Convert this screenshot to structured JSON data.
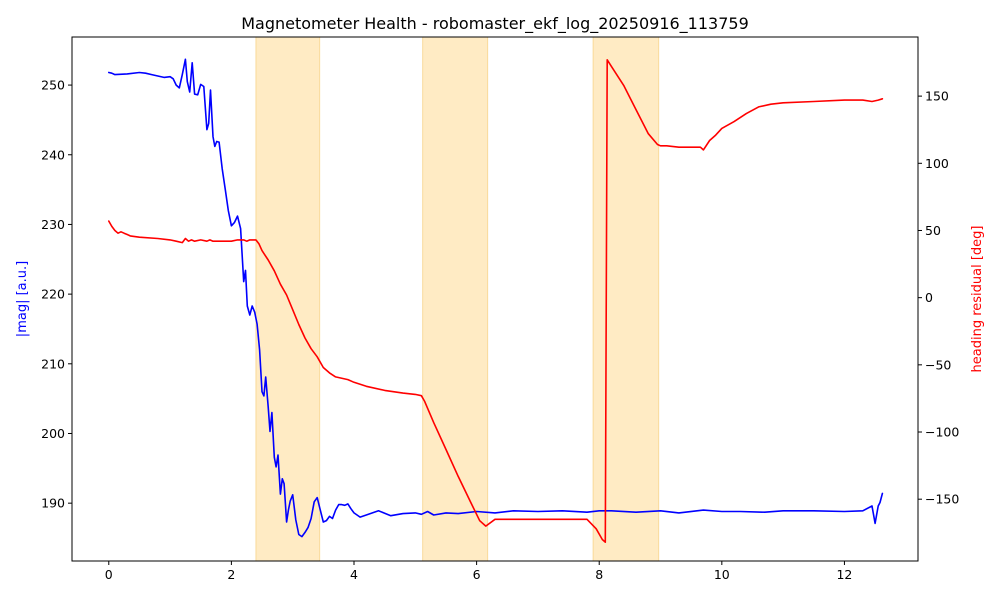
{
  "chart_data": {
    "type": "line",
    "title": "Magnetometer Health - robomaster_ekf_log_20250916_113759",
    "xlabel": "",
    "xlim": [
      -0.6,
      13.2
    ],
    "x_ticks": [
      0,
      2,
      4,
      6,
      8,
      10,
      12
    ],
    "left_axis": {
      "label": "|mag| [a.u.]",
      "color": "#0000ff",
      "ylim": [
        181.7,
        256.9
      ],
      "ticks": [
        190,
        200,
        210,
        220,
        230,
        240,
        250
      ]
    },
    "right_axis": {
      "label": "heading residual [deg]",
      "color": "#ff0000",
      "ylim": [
        -196,
        194
      ],
      "ticks": [
        -150,
        -100,
        -50,
        0,
        50,
        100,
        150
      ]
    },
    "shaded_regions": {
      "color": "#ffe4b0",
      "spans": [
        [
          2.4,
          3.44
        ],
        [
          5.12,
          6.18
        ],
        [
          7.9,
          8.97
        ]
      ]
    },
    "grid": false,
    "series": [
      {
        "axis": "left",
        "color": "#0000ff",
        "x": [
          0,
          0.05,
          0.1,
          0.3,
          0.5,
          0.6,
          0.7,
          0.8,
          0.9,
          1.0,
          1.05,
          1.1,
          1.15,
          1.2,
          1.25,
          1.28,
          1.32,
          1.36,
          1.4,
          1.45,
          1.5,
          1.55,
          1.6,
          1.63,
          1.66,
          1.7,
          1.73,
          1.76,
          1.8,
          1.85,
          1.9,
          1.95,
          2.0,
          2.05,
          2.1,
          2.15,
          2.2,
          2.23,
          2.26,
          2.3,
          2.34,
          2.38,
          2.42,
          2.46,
          2.5,
          2.53,
          2.56,
          2.6,
          2.63,
          2.66,
          2.7,
          2.73,
          2.76,
          2.8,
          2.83,
          2.86,
          2.9,
          2.93,
          2.96,
          3.0,
          3.05,
          3.1,
          3.15,
          3.2,
          3.25,
          3.3,
          3.35,
          3.4,
          3.45,
          3.5,
          3.55,
          3.6,
          3.65,
          3.7,
          3.75,
          3.8,
          3.85,
          3.9,
          3.95,
          4.0,
          4.1,
          4.2,
          4.3,
          4.4,
          4.6,
          4.8,
          5.0,
          5.1,
          5.2,
          5.3,
          5.5,
          5.7,
          6.0,
          6.3,
          6.6,
          7.0,
          7.4,
          7.8,
          8.0,
          8.2,
          8.6,
          9.0,
          9.3,
          9.7,
          10.0,
          10.3,
          10.7,
          11.0,
          11.5,
          12.0,
          12.3,
          12.45,
          12.5,
          12.55,
          12.58,
          12.62
        ],
        "values": [
          251.8,
          251.7,
          251.5,
          251.6,
          251.8,
          251.7,
          251.5,
          251.3,
          251.1,
          251.2,
          250.9,
          250.0,
          249.6,
          251.5,
          253.7,
          250.5,
          249.0,
          253.2,
          248.7,
          248.6,
          250.1,
          249.8,
          243.6,
          244.5,
          249.3,
          242.6,
          241.2,
          241.9,
          241.8,
          238.0,
          235.0,
          232.0,
          229.8,
          230.3,
          231.2,
          229.4,
          221.8,
          223.4,
          218.3,
          217.0,
          218.3,
          217.4,
          215.7,
          212.0,
          206.0,
          205.4,
          208.1,
          203.8,
          200.3,
          203.0,
          196.6,
          195.2,
          196.9,
          191.3,
          193.5,
          192.8,
          187.3,
          189.0,
          190.3,
          191.2,
          187.6,
          185.5,
          185.2,
          185.8,
          186.5,
          187.8,
          190.2,
          190.8,
          189.0,
          187.3,
          187.5,
          188.1,
          187.8,
          189.0,
          189.8,
          189.8,
          189.7,
          189.9,
          189.2,
          188.6,
          188.0,
          188.3,
          188.6,
          188.9,
          188.2,
          188.5,
          188.6,
          188.4,
          188.8,
          188.3,
          188.6,
          188.5,
          188.8,
          188.6,
          188.9,
          188.8,
          188.9,
          188.7,
          188.9,
          188.9,
          188.7,
          188.9,
          188.6,
          189.0,
          188.8,
          188.8,
          188.7,
          188.9,
          188.9,
          188.8,
          188.9,
          189.6,
          187.1,
          189.6,
          190.1,
          191.4
        ]
      },
      {
        "axis": "right",
        "color": "#ff0000",
        "x": [
          0,
          0.05,
          0.1,
          0.15,
          0.2,
          0.25,
          0.3,
          0.35,
          0.5,
          0.8,
          1.0,
          1.1,
          1.2,
          1.25,
          1.3,
          1.35,
          1.4,
          1.5,
          1.6,
          1.65,
          1.7,
          1.8,
          2.0,
          2.1,
          2.2,
          2.25,
          2.3,
          2.4,
          2.45,
          2.5,
          2.6,
          2.7,
          2.8,
          2.9,
          3.0,
          3.1,
          3.2,
          3.3,
          3.4,
          3.5,
          3.6,
          3.7,
          3.9,
          4.0,
          4.2,
          4.5,
          4.8,
          5.0,
          5.1,
          5.15,
          5.3,
          5.5,
          5.7,
          5.9,
          6.05,
          6.15,
          6.3,
          6.6,
          7.0,
          7.5,
          7.8,
          7.95,
          8.05,
          8.1,
          8.13,
          8.2,
          8.4,
          8.6,
          8.8,
          8.95,
          9.0,
          9.1,
          9.3,
          9.5,
          9.65,
          9.7,
          9.8,
          9.9,
          10.0,
          10.2,
          10.4,
          10.6,
          10.8,
          11.0,
          11.5,
          12.0,
          12.3,
          12.45,
          12.55,
          12.62
        ],
        "values": [
          57,
          53,
          50,
          48,
          49,
          48,
          47,
          46,
          45,
          44,
          43,
          42,
          41,
          44,
          42,
          43,
          42,
          43,
          42,
          43,
          42,
          42,
          42,
          43,
          43,
          42,
          43,
          43,
          40,
          35,
          28,
          20,
          10,
          2,
          -9,
          -20,
          -30,
          -38,
          -44,
          -52,
          -56,
          -59,
          -61,
          -63,
          -66,
          -69,
          -71,
          -72,
          -73,
          -77,
          -93,
          -113,
          -133,
          -152,
          -166,
          -170,
          -165,
          -165,
          -165,
          -165,
          -165,
          -172,
          -180,
          -182,
          177,
          172,
          158,
          140,
          122,
          114,
          113,
          113,
          112,
          112,
          112,
          110,
          117,
          121,
          126,
          131,
          137,
          142,
          144,
          145,
          146,
          147,
          147,
          146,
          147,
          148
        ]
      }
    ]
  }
}
